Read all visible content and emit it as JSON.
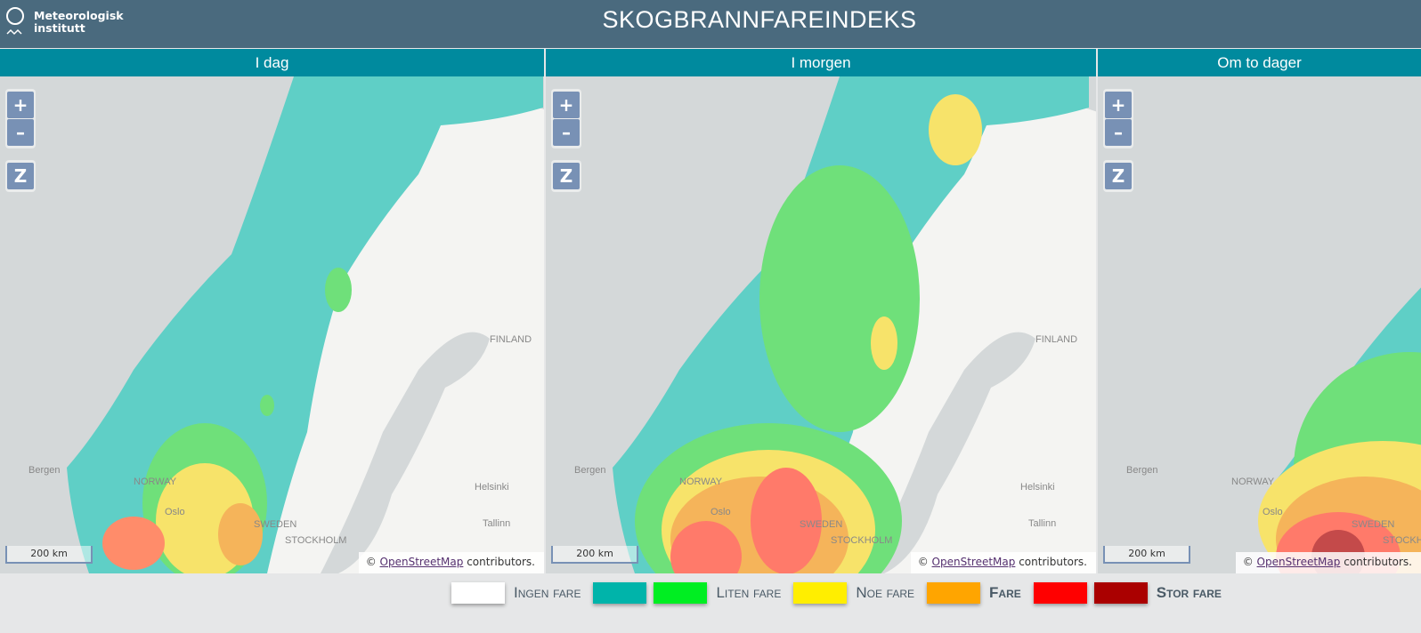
{
  "header": {
    "logo_line1": "Meteorologisk",
    "logo_line2": "institutt",
    "title": "SKOGBRANNFAREINDEKS"
  },
  "panels": [
    {
      "tab": "I dag",
      "level": "low"
    },
    {
      "tab": "I morgen",
      "level": "mid"
    },
    {
      "tab": "Om to dager",
      "level": "high"
    }
  ],
  "map": {
    "zoom_in": "+",
    "zoom_out": "–",
    "reset": "Z",
    "scale": "200 km",
    "attr_prefix": "©",
    "attr_link": "OpenStreetMap",
    "attr_suffix": " contributors.",
    "labels": {
      "finland": "FINLAND",
      "sweden": "SWEDEN",
      "stockholm": "STOCKHOLM",
      "helsinki": "Helsinki",
      "tallinn": "Tallinn",
      "bergen": "Bergen",
      "norway": "NORWAY",
      "oslo": "Oslo"
    }
  },
  "legend": [
    {
      "label": "Ingen fare",
      "colors": [
        "#ffffff"
      ],
      "bold": false
    },
    {
      "label": "Liten fare",
      "colors": [
        "#00b4aa",
        "#00ee22"
      ],
      "bold": false
    },
    {
      "label": "Noe fare",
      "colors": [
        "#ffee00"
      ],
      "bold": false
    },
    {
      "label": "Fare",
      "colors": [
        "#ffa500"
      ],
      "bold": true
    },
    {
      "label": "Stor fare",
      "colors": [
        "#ff0000",
        "#aa0000"
      ],
      "bold": true
    }
  ]
}
